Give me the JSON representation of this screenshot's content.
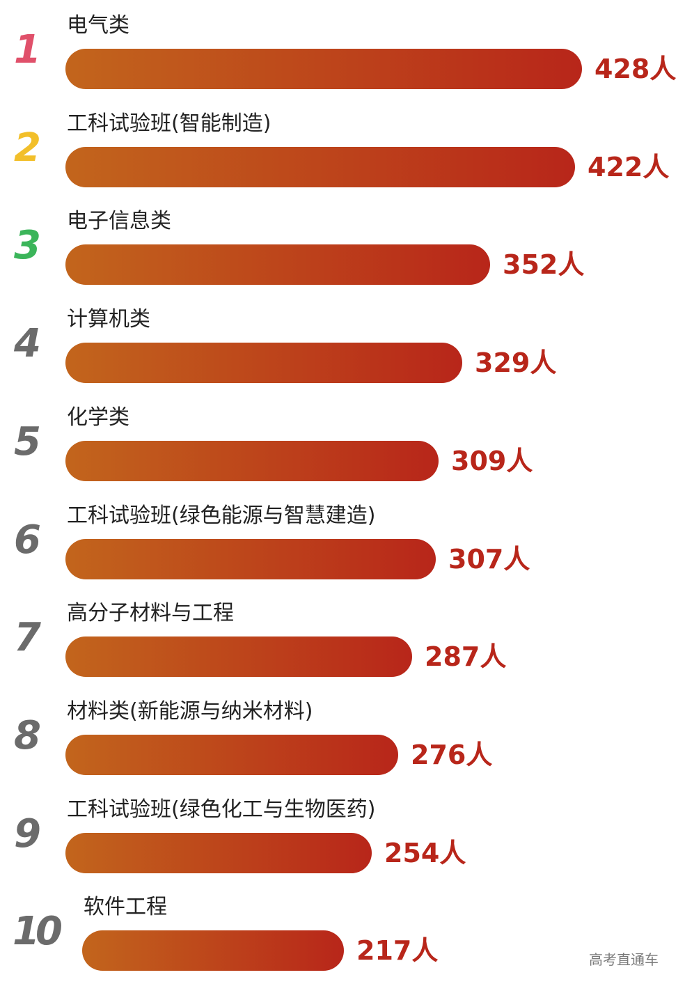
{
  "chart_data": {
    "type": "bar",
    "orientation": "horizontal",
    "title": "",
    "xlabel": "",
    "ylabel": "",
    "grid": false,
    "ranks": [
      "1",
      "2",
      "3",
      "4",
      "5",
      "6",
      "7",
      "8",
      "9",
      "10"
    ],
    "categories": [
      "电气类",
      "工科试验班(智能制造)",
      "电子信息类",
      "计算机类",
      "化学类",
      "工科试验班(绿色能源与智慧建造)",
      "高分子材料与工程",
      "材料类(新能源与纳米材料)",
      "工科试验班(绿色化工与生物医药)",
      "软件工程"
    ],
    "values": [
      428,
      422,
      352,
      329,
      309,
      307,
      287,
      276,
      254,
      217
    ],
    "value_labels": [
      "428人",
      "422人",
      "352人",
      "329人",
      "309人",
      "307人",
      "287人",
      "276人",
      "254人",
      "217人"
    ],
    "unit": "人"
  },
  "colors": {
    "bar_gradient_start": "#c2651c",
    "bar_gradient_end": "#b8261a",
    "value_text": "#b8261a",
    "rank_1": "#e0506a",
    "rank_2": "#f2bf2a",
    "rank_3": "#3bb55a",
    "rank_other": "#6b6b6b",
    "label_text": "#222222"
  },
  "watermark": {
    "text": "高考直通车"
  }
}
